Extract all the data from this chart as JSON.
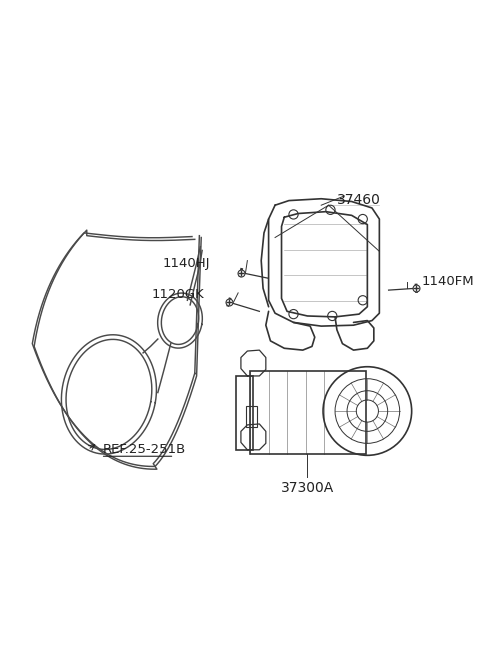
{
  "bg_color": "#ffffff",
  "line_color": "#444444",
  "label_color": "#222222",
  "parts": {
    "belt": {
      "label": "REF.25-251B",
      "underline": true
    },
    "bracket": {
      "label": "37460"
    },
    "alternator": {
      "label": "37300A"
    },
    "bolt1": {
      "label": "1140HJ"
    },
    "bolt2": {
      "label": "1120GK"
    },
    "bolt3": {
      "label": "1140FM"
    }
  },
  "title": "",
  "figsize": [
    4.8,
    6.55
  ],
  "dpi": 100
}
